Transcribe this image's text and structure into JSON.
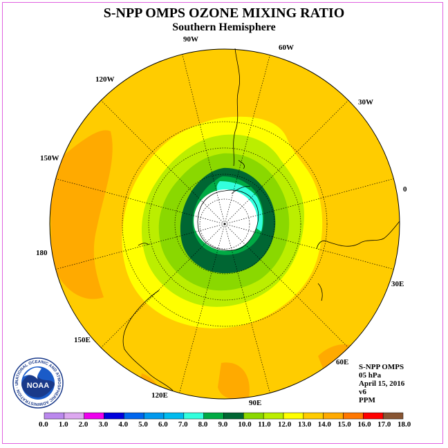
{
  "title": "S-NPP OMPS OZONE MIXING RATIO",
  "subtitle": "Southern Hemisphere",
  "longitude_labels": {
    "lon_90w": "90W",
    "lon_60w": "60W",
    "lon_30w": "30W",
    "lon_0": "0",
    "lon_30e": "30E",
    "lon_60e": "60E",
    "lon_90e": "90E",
    "lon_120e": "120E",
    "lon_150e": "150E",
    "lon_180": "180",
    "lon_150w": "150W",
    "lon_120w": "120W"
  },
  "info": {
    "instrument": "S-NPP OMPS",
    "level": "05 hPa",
    "date": "April 15, 2016",
    "version": "v6",
    "units": "PPM"
  },
  "logo": {
    "text": "NOAA",
    "ring_text": "NATIONAL OCEANIC AND ATMOSPHERIC ADMINISTRATION · U.S. DEPARTMENT OF COMMERCE"
  },
  "colorbar": {
    "tick_labels": [
      "0.0",
      "1.0",
      "2.0",
      "3.0",
      "4.0",
      "5.0",
      "6.0",
      "7.0",
      "8.0",
      "9.0",
      "10.0",
      "11.0",
      "12.0",
      "13.0",
      "14.0",
      "15.0",
      "16.0",
      "17.0",
      "18.0"
    ],
    "colors": [
      "#bb88ee",
      "#dda8f0",
      "#ee00ee",
      "#0000dd",
      "#0066ee",
      "#0099ee",
      "#00bbee",
      "#33ffdd",
      "#00aa44",
      "#006633",
      "#8ad800",
      "#bbee00",
      "#ffff00",
      "#ffcc00",
      "#ffaa00",
      "#ff7700",
      "#ff0000",
      "#885533"
    ]
  },
  "colors": {
    "band_11": "#8ad800",
    "band_12": "#bbee00",
    "band_13": "#ffff00",
    "band_14": "#ffcc00",
    "band_15": "#ffaa00",
    "band_10": "#006633",
    "band_9": "#00aa44",
    "band_8": "#33ffdd",
    "no_data": "#ffffff"
  }
}
